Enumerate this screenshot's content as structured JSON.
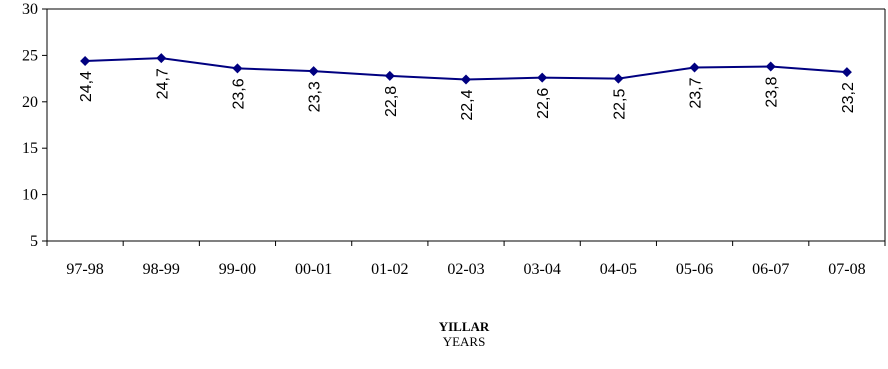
{
  "chart_data": {
    "type": "line",
    "categories": [
      "97-98",
      "98-99",
      "99-00",
      "00-01",
      "01-02",
      "02-03",
      "03-04",
      "04-05",
      "05-06",
      "06-07",
      "07-08"
    ],
    "series": [
      {
        "values": [
          24.4,
          24.7,
          23.6,
          23.3,
          22.8,
          22.4,
          22.6,
          22.5,
          23.7,
          23.8,
          23.2
        ],
        "labels": [
          "24,4",
          "24,7",
          "23,6",
          "23,3",
          "22,8",
          "22,4",
          "22,6",
          "22,5",
          "23,7",
          "23,8",
          "23,2"
        ]
      }
    ],
    "ylim": [
      5,
      30
    ],
    "yticks": [
      5,
      10,
      15,
      20,
      25,
      30
    ],
    "xlabel": "YILLAR",
    "xlabel_sub": "YEARS",
    "ylabel": "",
    "grid": false,
    "legend": "none",
    "colors": {
      "line": "#000080",
      "marker": "#000080",
      "axis": "#000000"
    },
    "marker": "diamond-icon"
  }
}
